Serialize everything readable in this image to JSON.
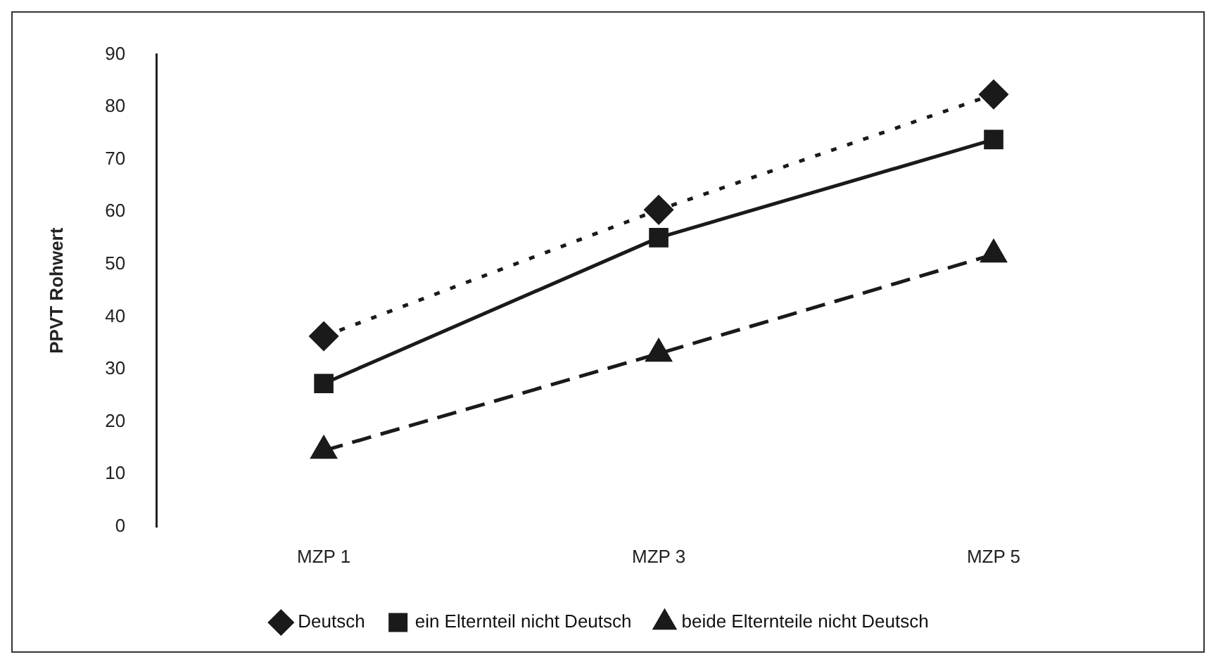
{
  "chart_data": {
    "type": "line",
    "ylabel": "PPVT Rohwert",
    "categories": [
      "MZP 1",
      "MZP 3",
      "MZP 5"
    ],
    "series": [
      {
        "name": "Deutsch",
        "color": "#1a1a1a",
        "values": [
          36.3,
          60.4,
          82.4
        ],
        "marker": "diamond",
        "line_style": "dotted"
      },
      {
        "name": "ein Elternteil nicht Deutsch",
        "color": "#1a1a1a",
        "values": [
          27.3,
          55.1,
          73.8
        ],
        "marker": "square",
        "line_style": "solid"
      },
      {
        "name": "beide Elternteile nicht Deutsch",
        "color": "#1a1a1a",
        "values": [
          14.5,
          33,
          51.9
        ],
        "marker": "triangle",
        "line_style": "dashed"
      }
    ],
    "ylim": [
      0,
      90
    ],
    "yticks": [
      0,
      10,
      20,
      30,
      40,
      50,
      60,
      70,
      80,
      90
    ],
    "grid": false,
    "legend": "bottom"
  }
}
